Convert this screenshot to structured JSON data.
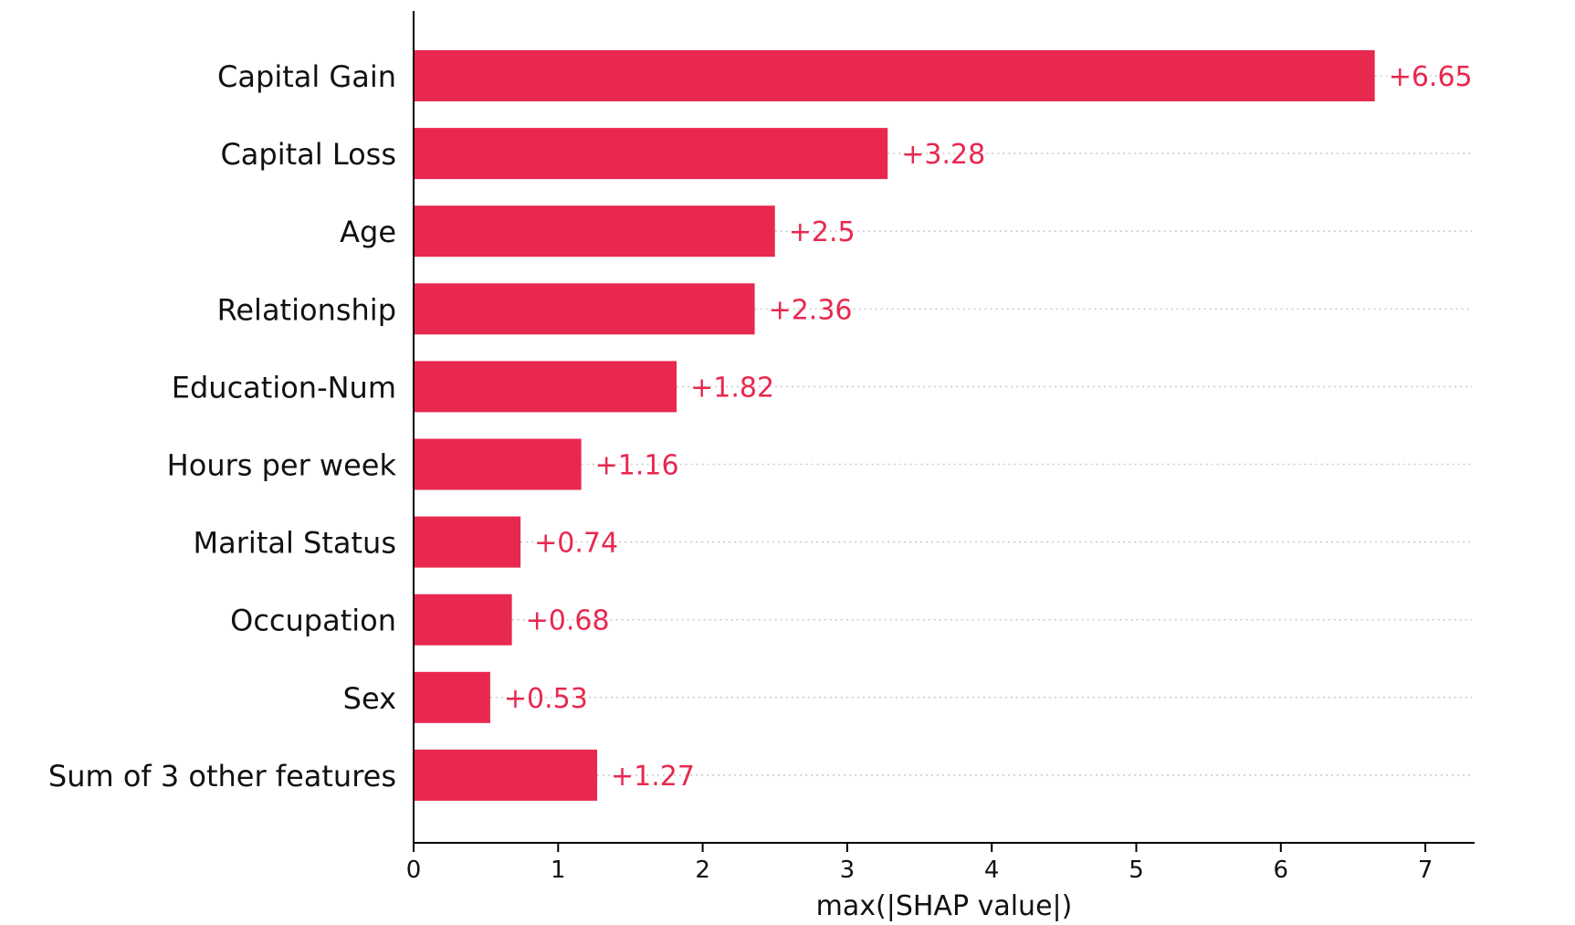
{
  "chart_data": {
    "type": "bar",
    "orientation": "horizontal",
    "categories": [
      "Capital Gain",
      "Capital Loss",
      "Age",
      "Relationship",
      "Education-Num",
      "Hours per week",
      "Marital Status",
      "Occupation",
      "Sex",
      "Sum of 3 other features"
    ],
    "values": [
      6.65,
      3.28,
      2.5,
      2.36,
      1.82,
      1.16,
      0.74,
      0.68,
      0.53,
      1.27
    ],
    "value_labels": [
      "+6.65",
      "+3.28",
      "+2.5",
      "+2.36",
      "+1.82",
      "+1.16",
      "+0.74",
      "+0.68",
      "+0.53",
      "+1.27"
    ],
    "xlabel": "max(|SHAP value|)",
    "ylabel": "",
    "title": "",
    "xlim": [
      0,
      7.3
    ],
    "xticks": [
      0,
      1,
      2,
      3,
      4,
      5,
      6,
      7
    ],
    "xtick_labels": [
      "0",
      "1",
      "2",
      "3",
      "4",
      "5",
      "6",
      "7"
    ],
    "grid": "dotted horizontal guide per row",
    "legend": "none",
    "colors": {
      "bar": "#e8284f",
      "value_label": "#e8284f",
      "axis": "#000000",
      "text": "#111111",
      "guide": "#cccccc"
    }
  }
}
